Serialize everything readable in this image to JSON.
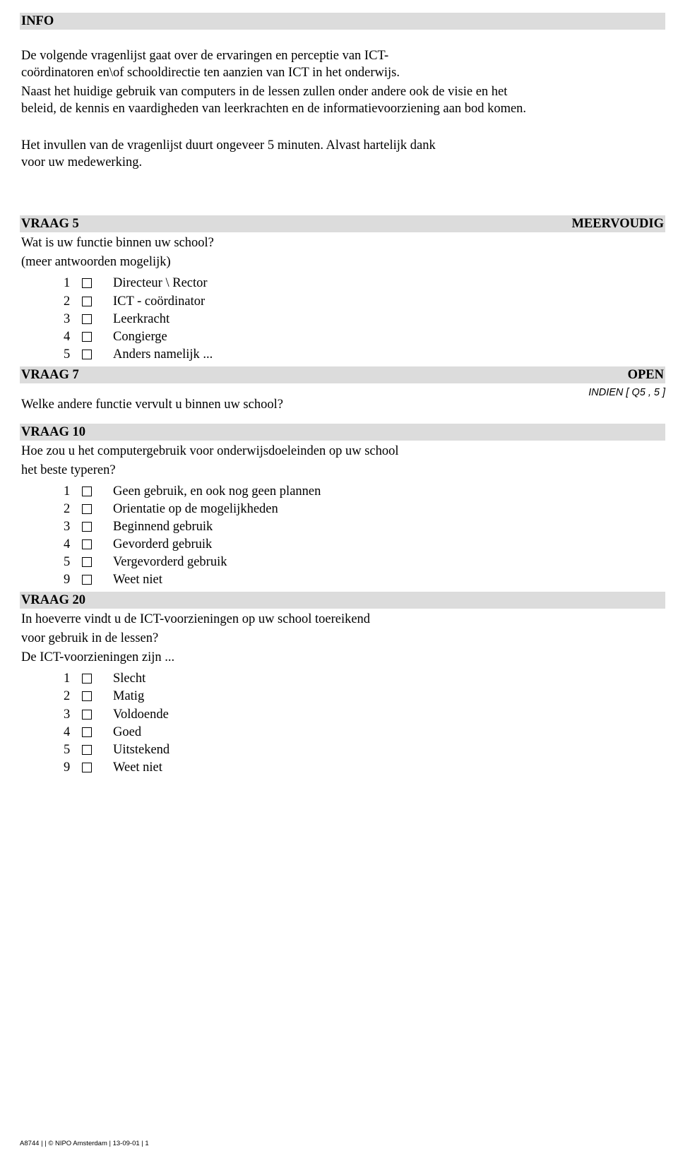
{
  "info": {
    "title": "INFO",
    "paragraphs": [
      "De volgende vragenlijst gaat over de ervaringen en perceptie van ICT-coördinatoren en\\of schooldirectie ten aanzien van ICT in het onderwijs.",
      "Naast het huidige gebruik van computers in de lessen zullen onder andere ook de visie en het beleid, de kennis en vaardigheden van leerkrachten en de informatievoorziening aan bod komen.",
      "Het invullen van de vragenlijst duurt ongeveer 5 minuten. Alvast hartelijk dank voor uw medewerking."
    ]
  },
  "q5": {
    "title": "VRAAG 5",
    "tag": "MEERVOUDIG",
    "text_line1": "Wat is uw functie binnen uw school?",
    "text_line2": "(meer antwoorden mogelijk)",
    "options": [
      {
        "n": "1",
        "label": "Directeur \\ Rector"
      },
      {
        "n": "2",
        "label": "ICT - coördinator"
      },
      {
        "n": "3",
        "label": "Leerkracht"
      },
      {
        "n": "4",
        "label": "Congierge"
      },
      {
        "n": "5",
        "label": "Anders namelijk ..."
      }
    ]
  },
  "q7": {
    "title": "VRAAG 7",
    "tag": "OPEN",
    "indien": "INDIEN [ Q5 , 5 ]",
    "text": "Welke andere functie vervult u binnen uw school?"
  },
  "q10": {
    "title": "VRAAG 10",
    "text_line1": "Hoe zou u het computergebruik voor onderwijsdoeleinden op uw school",
    "text_line2": "het beste typeren?",
    "options": [
      {
        "n": "1",
        "label": "Geen gebruik, en ook nog geen plannen"
      },
      {
        "n": "2",
        "label": "Orientatie op de mogelijkheden"
      },
      {
        "n": "3",
        "label": "Beginnend gebruik"
      },
      {
        "n": "4",
        "label": "Gevorderd gebruik"
      },
      {
        "n": "5",
        "label": "Vergevorderd gebruik"
      },
      {
        "n": "9",
        "label": "Weet niet"
      }
    ]
  },
  "q20": {
    "title": "VRAAG 20",
    "text_line1": "In hoeverre vindt u de ICT-voorzieningen op uw school toereikend",
    "text_line2": "voor gebruik in de lessen?",
    "text_line3": "De ICT-voorzieningen zijn ...",
    "options": [
      {
        "n": "1",
        "label": "Slecht"
      },
      {
        "n": "2",
        "label": "Matig"
      },
      {
        "n": "3",
        "label": "Voldoende"
      },
      {
        "n": "4",
        "label": "Goed"
      },
      {
        "n": "5",
        "label": "Uitstekend"
      },
      {
        "n": "9",
        "label": "Weet niet"
      }
    ]
  },
  "footer": "A8744 |  | © NIPO Amsterdam | 13-09-01 | 1"
}
